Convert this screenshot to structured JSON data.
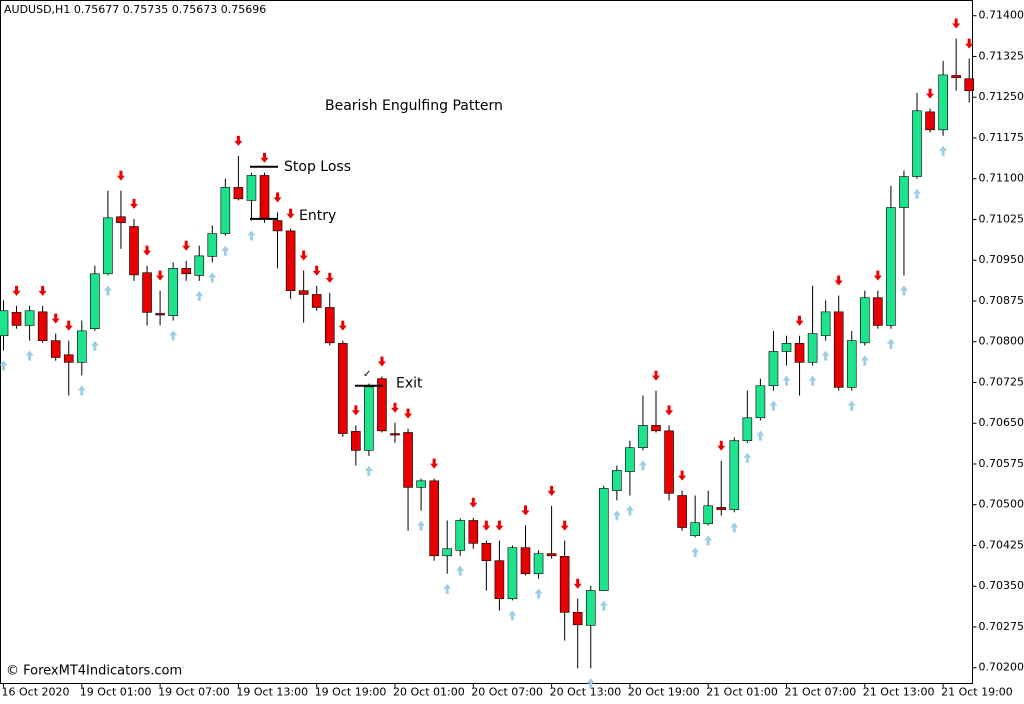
{
  "chart_data": {
    "type": "candlestick",
    "header": "AUDUSD,H1  0.75677 0.75735 0.75673 0.75696",
    "watermark": "© ForexMT4Indicators.com",
    "annotations": [
      {
        "text": "Bearish Engulfing Pattern"
      },
      {
        "text": "Stop Loss",
        "price": 0.71122
      },
      {
        "text": "Entry",
        "price": 0.71026
      },
      {
        "text": "✓"
      },
      {
        "text": "Exit",
        "price": 0.70719
      }
    ],
    "up_color": "#1de38c",
    "down_color": "#e60000",
    "up_arrow_color": "#9ccfe6",
    "down_arrow_color": "#ee0000",
    "categories": [
      "16 Oct 2020",
      null,
      null,
      null,
      null,
      null,
      "19 Oct 01:00",
      null,
      null,
      null,
      null,
      null,
      "19 Oct 07:00",
      null,
      null,
      null,
      null,
      null,
      "19 Oct 13:00",
      null,
      null,
      null,
      null,
      null,
      "19 Oct 19:00",
      null,
      null,
      null,
      null,
      null,
      "20 Oct 01:00",
      null,
      null,
      null,
      null,
      null,
      "20 Oct 07:00",
      null,
      null,
      null,
      null,
      null,
      "20 Oct 13:00",
      null,
      null,
      null,
      null,
      null,
      "20 Oct 19:00",
      null,
      null,
      null,
      null,
      null,
      "21 Oct 01:00",
      null,
      null,
      null,
      null,
      null,
      "21 Oct 07:00",
      null,
      null,
      null,
      null,
      null,
      "21 Oct 13:00",
      null,
      null,
      null,
      null,
      null,
      "21 Oct 19:00",
      null,
      null
    ],
    "open": [
      0.70811,
      0.70854,
      0.7083,
      0.70855,
      0.70802,
      0.70776,
      0.70762,
      0.70824,
      0.70925,
      0.7103,
      0.71012,
      0.70927,
      0.70852,
      0.70848,
      0.70935,
      0.70922,
      0.70957,
      0.70999,
      0.71084,
      0.7106,
      0.71106,
      0.71023,
      0.71004,
      0.70894,
      0.70887,
      0.70863,
      0.70797,
      0.70635,
      0.706,
      0.70732,
      0.70631,
      0.70633,
      0.70532,
      0.70544,
      0.70406,
      0.70416,
      0.70471,
      0.70429,
      0.70397,
      0.70327,
      0.70421,
      0.70373,
      0.7041,
      0.70405,
      0.70302,
      0.70278,
      0.70342,
      0.70526,
      0.70561,
      0.70605,
      0.70646,
      0.70636,
      0.70517,
      0.70443,
      0.70465,
      0.70495,
      0.70491,
      0.70618,
      0.7066,
      0.70719,
      0.70782,
      0.70797,
      0.70762,
      0.70811,
      0.70855,
      0.70716,
      0.70798,
      0.70881,
      0.7083,
      0.71047,
      0.71104,
      0.71223,
      0.7119,
      0.7129,
      0.71284
    ],
    "high": [
      0.70876,
      0.70866,
      0.70866,
      0.70866,
      0.70815,
      0.70802,
      0.70839,
      0.7094,
      0.71078,
      0.71078,
      0.71026,
      0.7094,
      0.70894,
      0.70946,
      0.70949,
      0.70977,
      0.71014,
      0.711,
      0.71142,
      0.71111,
      0.71111,
      0.71038,
      0.71008,
      0.70931,
      0.70903,
      0.7089,
      0.70802,
      0.70646,
      0.70723,
      0.70736,
      0.70651,
      0.7064,
      0.70548,
      0.70548,
      0.70471,
      0.70475,
      0.70476,
      0.70434,
      0.70434,
      0.70425,
      0.70462,
      0.70416,
      0.70498,
      0.70434,
      0.70327,
      0.70351,
      0.70535,
      0.70572,
      0.70618,
      0.70701,
      0.7071,
      0.70646,
      0.70526,
      0.70517,
      0.70526,
      0.70581,
      0.70624,
      0.7071,
      0.70732,
      0.7082,
      0.70811,
      0.70811,
      0.70903,
      0.70876,
      0.70885,
      0.7082,
      0.70894,
      0.70894,
      0.71087,
      0.71115,
      0.71258,
      0.71229,
      0.71317,
      0.71358,
      0.71321
    ],
    "low": [
      0.70784,
      0.70824,
      0.70802,
      0.70798,
      0.70765,
      0.70701,
      0.70738,
      0.7082,
      0.70922,
      0.70971,
      0.70912,
      0.7083,
      0.7083,
      0.70839,
      0.70912,
      0.70912,
      0.70946,
      0.70995,
      0.7106,
      0.71023,
      0.71019,
      0.70935,
      0.70879,
      0.70835,
      0.70857,
      0.70793,
      0.70625,
      0.70572,
      0.7059,
      0.70633,
      0.70614,
      0.70452,
      0.70489,
      0.70397,
      0.70373,
      0.70406,
      0.70419,
      0.70342,
      0.70305,
      0.70324,
      0.7037,
      0.70364,
      0.70401,
      0.7025,
      0.70199,
      0.70199,
      0.70342,
      0.70508,
      0.70517,
      0.706,
      0.70633,
      0.70508,
      0.70452,
      0.7044,
      0.70462,
      0.7048,
      0.70486,
      0.70614,
      0.70655,
      0.7071,
      0.70756,
      0.70701,
      0.70756,
      0.70802,
      0.7071,
      0.7071,
      0.70793,
      0.70824,
      0.70824,
      0.70922,
      0.711,
      0.71185,
      0.71179,
      0.71262,
      0.7124
    ],
    "close": [
      0.70857,
      0.7083,
      0.70857,
      0.70802,
      0.70771,
      0.70762,
      0.7082,
      0.70925,
      0.71028,
      0.71019,
      0.70923,
      0.70854,
      0.7085,
      0.70935,
      0.70925,
      0.70958,
      0.70999,
      0.71084,
      0.71063,
      0.71106,
      0.71026,
      0.71004,
      0.70894,
      0.70887,
      0.70863,
      0.70798,
      0.70631,
      0.706,
      0.70717,
      0.70636,
      0.70629,
      0.70532,
      0.70544,
      0.70406,
      0.70419,
      0.70471,
      0.70429,
      0.70397,
      0.70327,
      0.70421,
      0.70373,
      0.7041,
      0.70406,
      0.70302,
      0.70279,
      0.70342,
      0.7053,
      0.70563,
      0.70605,
      0.70646,
      0.70636,
      0.70521,
      0.70458,
      0.70467,
      0.70498,
      0.70491,
      0.70618,
      0.7066,
      0.70719,
      0.70782,
      0.70797,
      0.70762,
      0.70815,
      0.70855,
      0.70716,
      0.70802,
      0.70881,
      0.7083,
      0.71047,
      0.71104,
      0.71225,
      0.7119,
      0.71291,
      0.71286,
      0.71262
    ],
    "ylim": [
      0.70171,
      0.71428
    ],
    "yticks": [
      {
        "value": 0.714,
        "label": "0.71400"
      },
      {
        "value": 0.71325,
        "label": "0.71325"
      },
      {
        "value": 0.7125,
        "label": "0.71250"
      },
      {
        "value": 0.71175,
        "label": "0.71175"
      },
      {
        "value": 0.711,
        "label": "0.71100"
      },
      {
        "value": 0.71025,
        "label": "0.71025"
      },
      {
        "value": 0.7095,
        "label": "0.70950"
      },
      {
        "value": 0.70875,
        "label": "0.70875"
      },
      {
        "value": 0.708,
        "label": "0.70800"
      },
      {
        "value": 0.70725,
        "label": "0.70725"
      },
      {
        "value": 0.7065,
        "label": "0.70650"
      },
      {
        "value": 0.70575,
        "label": "0.70575"
      },
      {
        "value": 0.705,
        "label": "0.70500"
      },
      {
        "value": 0.70425,
        "label": "0.70425"
      },
      {
        "value": 0.7035,
        "label": "0.70350"
      },
      {
        "value": 0.70275,
        "label": "0.70275"
      },
      {
        "value": 0.702,
        "label": "0.70200"
      }
    ]
  }
}
